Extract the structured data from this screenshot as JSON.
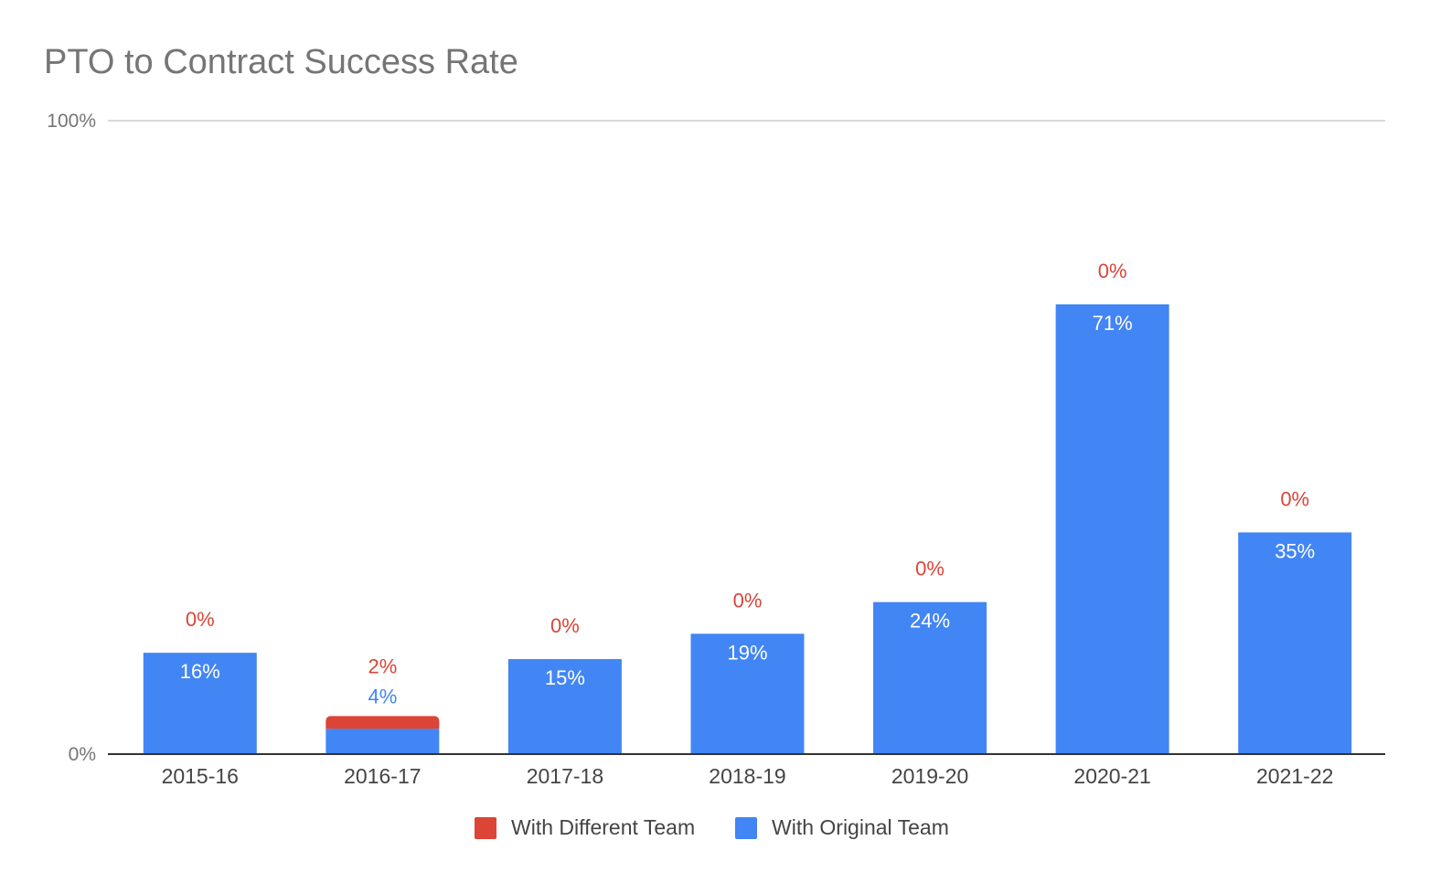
{
  "chart_data": {
    "type": "bar",
    "stacked": true,
    "title": "PTO to Contract Success Rate",
    "xlabel": "",
    "ylabel": "",
    "ylim": [
      0,
      100
    ],
    "y_ticks": [
      {
        "value": 0,
        "label": "0%"
      },
      {
        "value": 100,
        "label": "100%"
      }
    ],
    "categories": [
      "2015-16",
      "2016-17",
      "2017-18",
      "2018-19",
      "2019-20",
      "2020-21",
      "2021-22"
    ],
    "series": [
      {
        "name": "With Original Team",
        "color": "#4285f4",
        "values": [
          16,
          4,
          15,
          19,
          24,
          71,
          35
        ],
        "labels": [
          "16%",
          "4%",
          "15%",
          "19%",
          "24%",
          "71%",
          "35%"
        ]
      },
      {
        "name": "With Different Team",
        "color": "#db4437",
        "values": [
          0,
          2,
          0,
          0,
          0,
          0,
          0
        ],
        "labels": [
          "0%",
          "2%",
          "0%",
          "0%",
          "0%",
          "0%",
          "0%"
        ]
      }
    ],
    "legend": {
      "position": "bottom",
      "items": [
        {
          "name": "With Different Team",
          "color": "#db4437"
        },
        {
          "name": "With Original Team",
          "color": "#4285f4"
        }
      ]
    },
    "gridline_color": "#cccccc",
    "axis_color": "#333333"
  }
}
